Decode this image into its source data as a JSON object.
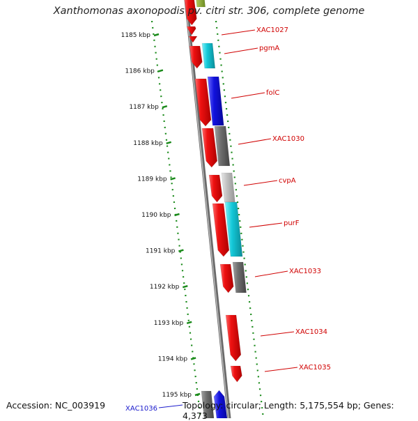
{
  "title": "Xanthomonas axonopodis pv. citri str. 306, complete genome",
  "footer": {
    "accession": "Accession: NC_003919",
    "topology": "Topology: circular; Length: 5,175,554 bp; Genes: 4,373"
  },
  "colors": {
    "red": "#ee1111",
    "cyan": "#14c8d8",
    "blue": "#1212dd",
    "dark_gray": "#6e6e6e",
    "light_gray": "#c0c0c0",
    "green": "#1e8c1e",
    "olive": "#7a9a2a",
    "label_red": "#d00000",
    "label_blue": "#1a1acc"
  },
  "ticks": [
    {
      "label": "1185 kbp"
    },
    {
      "label": "1186 kbp"
    },
    {
      "label": "1187 kbp"
    },
    {
      "label": "1188 kbp"
    },
    {
      "label": "1189 kbp"
    },
    {
      "label": "1190 kbp"
    },
    {
      "label": "1191 kbp"
    },
    {
      "label": "1192 kbp"
    },
    {
      "label": "1193 kbp"
    },
    {
      "label": "1194 kbp"
    },
    {
      "label": "1195 kbp"
    }
  ],
  "gene_labels": [
    {
      "text": "XAC1027",
      "color": "red"
    },
    {
      "text": "pgmA",
      "color": "red"
    },
    {
      "text": "folC",
      "color": "red"
    },
    {
      "text": "XAC1030",
      "color": "red"
    },
    {
      "text": "cvpA",
      "color": "red"
    },
    {
      "text": "purF",
      "color": "red"
    },
    {
      "text": "XAC1033",
      "color": "red"
    },
    {
      "text": "XAC1034",
      "color": "red"
    },
    {
      "text": "XAC1035",
      "color": "red"
    },
    {
      "text": "XAC1036",
      "color": "blue"
    }
  ]
}
